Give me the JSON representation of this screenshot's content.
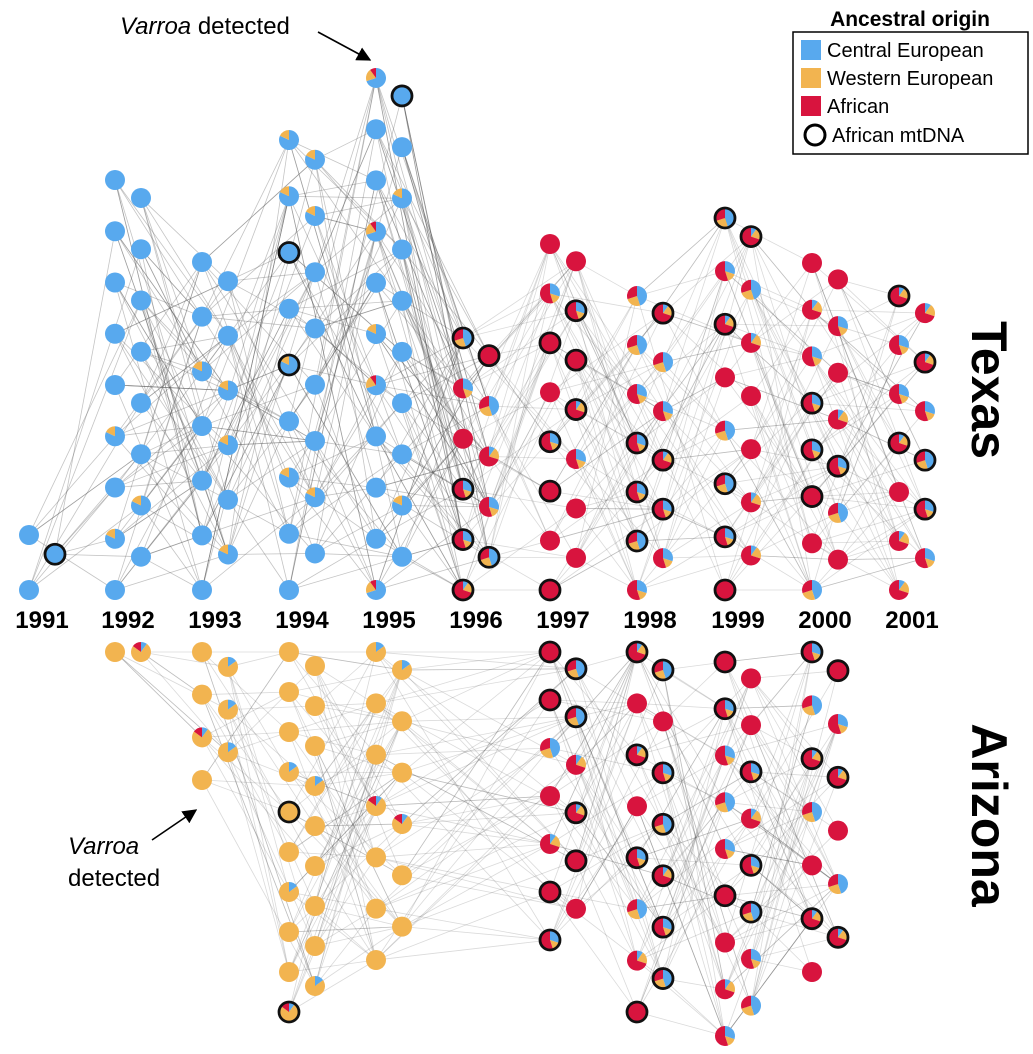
{
  "colors": {
    "central_european": "#58a9ee",
    "western_european": "#f2b450",
    "african": "#d8143e",
    "edge": "#555555",
    "mtdna_outline": "#111111"
  },
  "legend": {
    "title": "Ancestral origin",
    "items": [
      {
        "label": "Central European",
        "type": "swatch",
        "color_key": "central_european"
      },
      {
        "label": "Western European",
        "type": "swatch",
        "color_key": "western_european"
      },
      {
        "label": "African",
        "type": "swatch",
        "color_key": "african"
      },
      {
        "label": "African mtDNA",
        "type": "circle"
      }
    ]
  },
  "regions": {
    "texas": "Texas",
    "arizona": "Arizona"
  },
  "annotations": {
    "texas_varroa": {
      "italic": "Varroa",
      "rest": " detected"
    },
    "arizona_varroa": {
      "italic": "Varroa",
      "rest": "detected"
    }
  },
  "chart_data": {
    "type": "network",
    "years": [
      "1991",
      "1992",
      "1993",
      "1994",
      "1995",
      "1996",
      "1997",
      "1998",
      "1999",
      "2000",
      "2001"
    ],
    "texas": {
      "node_counts": [
        3,
        17,
        14,
        18,
        21,
        11,
        15,
        13,
        16,
        15,
        13
      ],
      "dominant_ancestry": [
        "central",
        "central",
        "central",
        "central",
        "central",
        "african",
        "african",
        "african",
        "african",
        "african",
        "african"
      ],
      "varroa_detected_year": "1995"
    },
    "arizona": {
      "node_counts": [
        0,
        2,
        8,
        19,
        13,
        0,
        13,
        16,
        17,
        14,
        0
      ],
      "dominant_ancestry": [
        null,
        "western",
        "western",
        "western",
        "western",
        null,
        "african",
        "african",
        "african",
        "african",
        null
      ],
      "varroa_detected_year": "1993"
    }
  }
}
